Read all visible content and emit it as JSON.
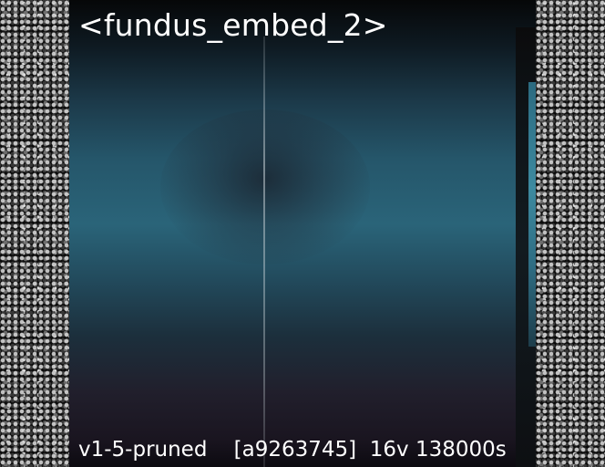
{
  "panel": {
    "title": "<fundus_embed_2>",
    "caption": "v1-5-pruned    [a9263745]  16v 138000s"
  },
  "colors": {
    "panel_top": "#0e1a22",
    "panel_mid": "#2a6479",
    "panel_bottom": "#1a1520",
    "text": "#ffffff"
  }
}
